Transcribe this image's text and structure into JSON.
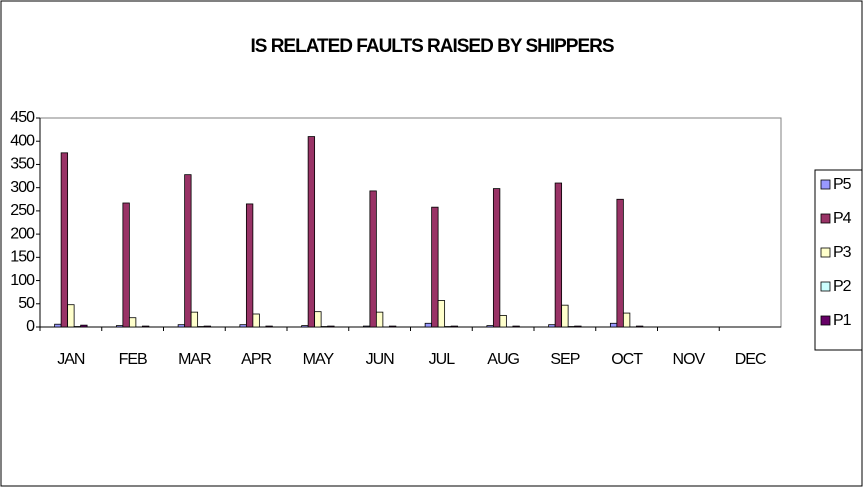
{
  "chart_data": {
    "type": "bar",
    "title": "IS RELATED FAULTS RAISED BY SHIPPERS",
    "categories": [
      "JAN",
      "FEB",
      "MAR",
      "APR",
      "MAY",
      "JUN",
      "JUL",
      "AUG",
      "SEP",
      "OCT",
      "NOV",
      "DEC"
    ],
    "series": [
      {
        "name": "P5",
        "color": "#9999ff",
        "values": [
          6,
          3,
          5,
          5,
          3,
          2,
          8,
          3,
          5,
          8,
          null,
          null
        ]
      },
      {
        "name": "P4",
        "color": "#993366",
        "values": [
          375,
          267,
          328,
          265,
          410,
          293,
          258,
          298,
          310,
          275,
          null,
          null
        ]
      },
      {
        "name": "P3",
        "color": "#ffffcc",
        "values": [
          48,
          20,
          32,
          28,
          33,
          32,
          57,
          25,
          47,
          30,
          null,
          null
        ]
      },
      {
        "name": "P2",
        "color": "#ccffff",
        "values": [
          1,
          0,
          1,
          0,
          1,
          0,
          1,
          0,
          1,
          0,
          null,
          null
        ]
      },
      {
        "name": "P1",
        "color": "#660066",
        "values": [
          4,
          2,
          2,
          2,
          2,
          2,
          2,
          2,
          2,
          2,
          null,
          null
        ]
      }
    ],
    "ylim": [
      0,
      450
    ],
    "yticks": [
      0,
      50,
      100,
      150,
      200,
      250,
      300,
      350,
      400,
      450
    ],
    "grid": false,
    "legend": "right"
  }
}
